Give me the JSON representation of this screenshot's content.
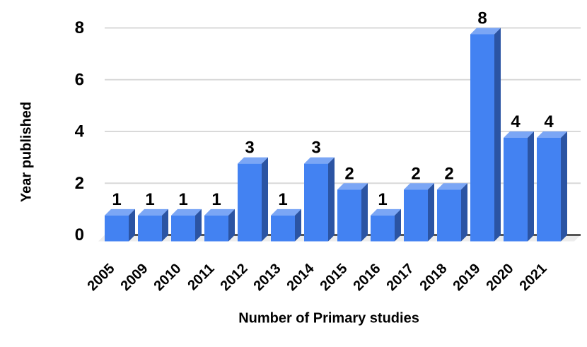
{
  "chart_data": {
    "type": "bar",
    "style": "3d-column",
    "title": "",
    "categories": [
      "2005",
      "2009",
      "2010",
      "2011",
      "2012",
      "2013",
      "2014",
      "2015",
      "2016",
      "2017",
      "2018",
      "2019",
      "2020",
      "2021"
    ],
    "values": [
      1,
      1,
      1,
      1,
      3,
      1,
      3,
      2,
      1,
      2,
      2,
      8,
      4,
      4
    ],
    "xlabel": "Number of Primary studies",
    "ylabel": "Year published",
    "ylim": [
      0,
      8
    ],
    "yticks": [
      0,
      2,
      4,
      6,
      8
    ],
    "grid": true,
    "legend": "none",
    "bar_labels": true,
    "x_tick_rotation_deg": -45,
    "colors": {
      "bar_front": "#4382f2",
      "bar_top": "#7ba6f5",
      "bar_side": "#2b54a3",
      "gridline": "#d9d9d9",
      "axis_line": "#333333",
      "floor": "#ededed",
      "text": "#000000",
      "background": "#ffffff"
    }
  }
}
